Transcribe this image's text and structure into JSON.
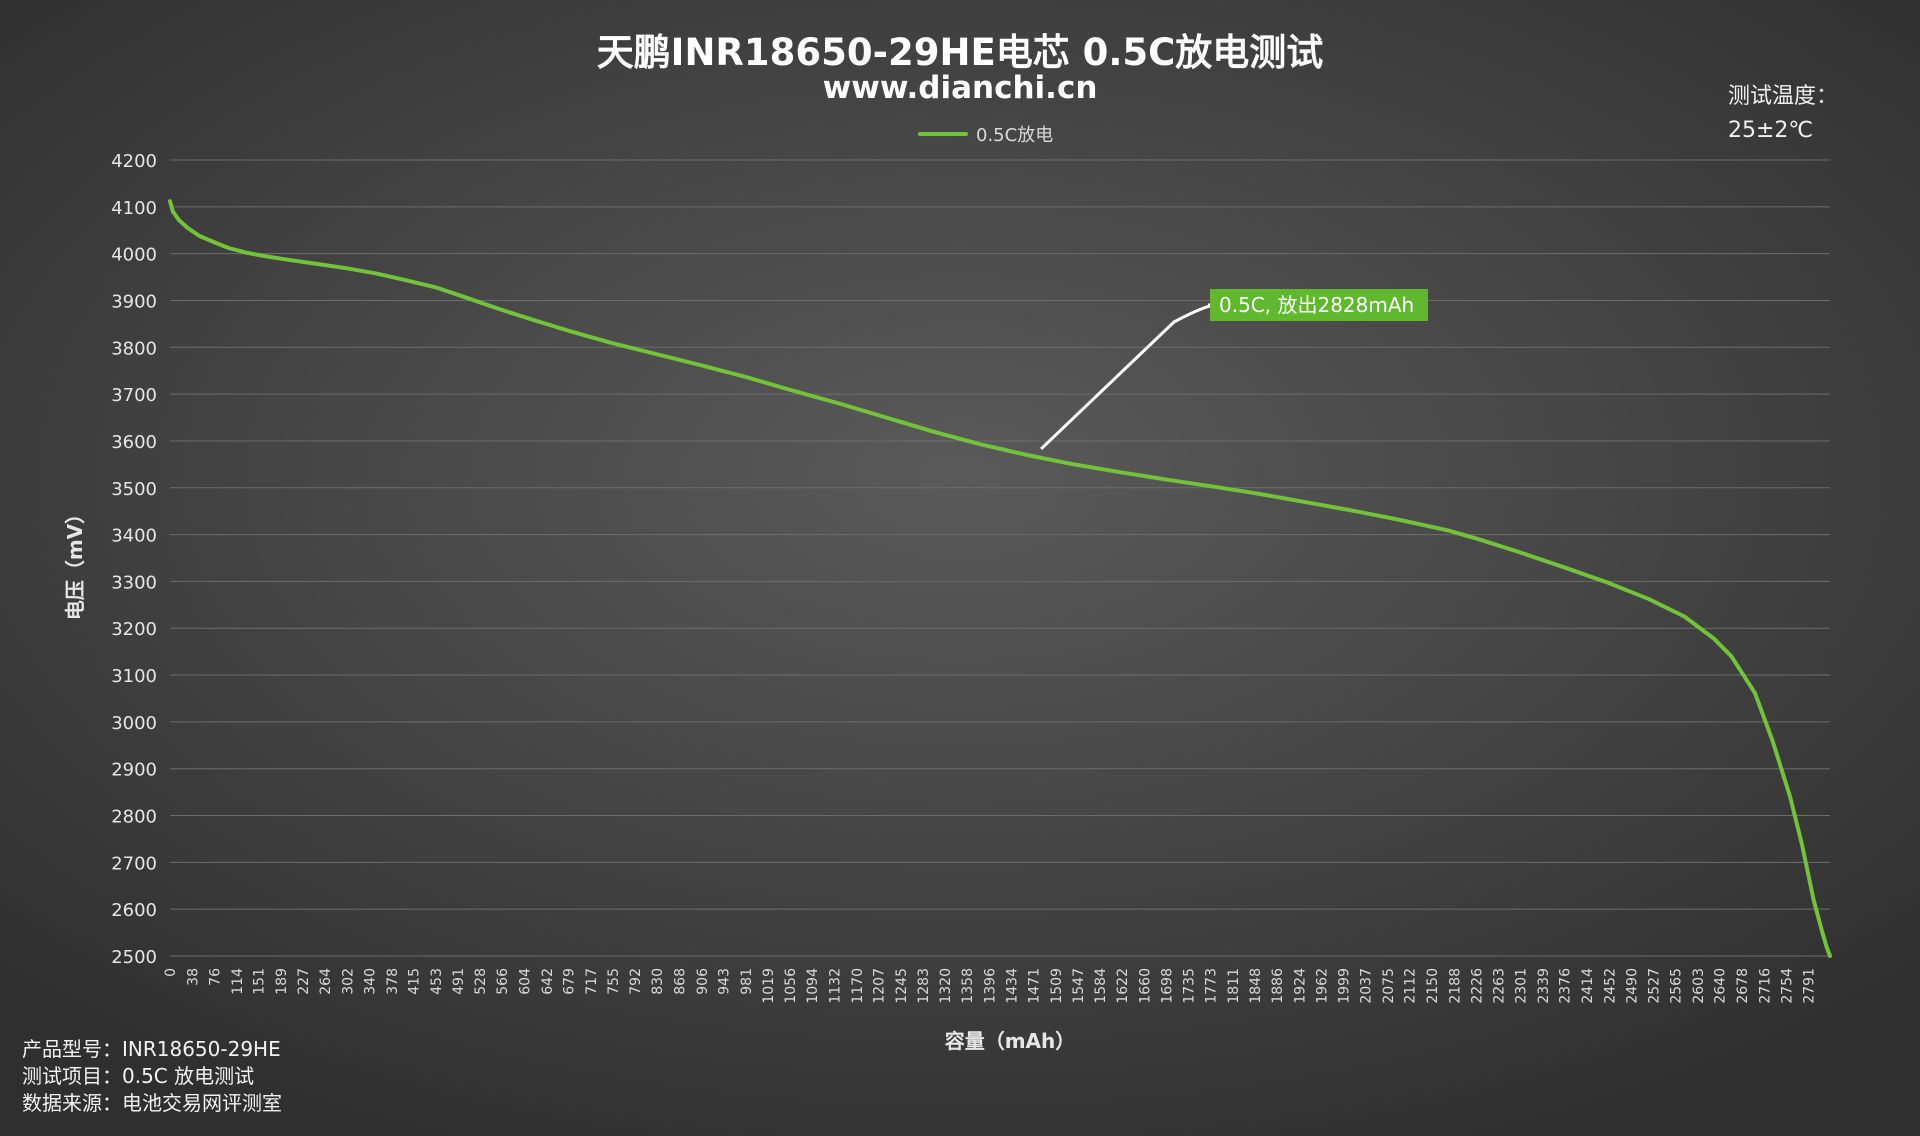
{
  "header": {
    "title": "天鹏INR18650-29HE电芯 0.5C放电测试",
    "subtitle": "www.dianchi.cn",
    "temp_label": "测试温度：",
    "temp_value": "25±2℃"
  },
  "legend": {
    "label": "0.5C放电"
  },
  "annotation": {
    "text": "0.5C, 放出2828mAh"
  },
  "info": {
    "model": "产品型号：INR18650-29HE",
    "item": "测试项目：0.5C 放电测试",
    "source": "数据来源：电池交易网评测室"
  },
  "colors": {
    "series": "#72c23a",
    "annotation_bg": "#5fb82e",
    "leader": "#ffffff",
    "grid": "#6c6c6c"
  },
  "chart_data": {
    "type": "line",
    "title": "天鹏INR18650-29HE电芯 0.5C放电测试",
    "xlabel": "容量（mAh）",
    "ylabel": "电压（mV）",
    "xlim": [
      0,
      2828
    ],
    "ylim": [
      2500,
      4200
    ],
    "yticks": [
      2500,
      2600,
      2700,
      2800,
      2900,
      3000,
      3100,
      3200,
      3300,
      3400,
      3500,
      3600,
      3700,
      3800,
      3900,
      4000,
      4100,
      4200
    ],
    "xticks": [
      0,
      38,
      76,
      114,
      151,
      189,
      227,
      264,
      302,
      340,
      378,
      415,
      453,
      491,
      528,
      566,
      604,
      642,
      679,
      717,
      755,
      792,
      830,
      868,
      906,
      943,
      981,
      1019,
      1056,
      1094,
      1132,
      1170,
      1207,
      1245,
      1283,
      1320,
      1358,
      1396,
      1434,
      1471,
      1509,
      1547,
      1584,
      1622,
      1660,
      1698,
      1735,
      1773,
      1811,
      1848,
      1886,
      1924,
      1962,
      1999,
      2037,
      2075,
      2112,
      2150,
      2188,
      2226,
      2263,
      2301,
      2339,
      2376,
      2414,
      2452,
      2490,
      2527,
      2565,
      2603,
      2640,
      2678,
      2716,
      2754,
      2791
    ],
    "grid": true,
    "legend_position": "top",
    "series": [
      {
        "name": "0.5C放电",
        "x": [
          0,
          5,
          15,
          30,
          50,
          76,
          100,
          130,
          160,
          200,
          250,
          300,
          350,
          400,
          453,
          500,
          560,
          620,
          680,
          750,
          830,
          900,
          980,
          1060,
          1140,
          1220,
          1300,
          1380,
          1460,
          1540,
          1620,
          1700,
          1780,
          1860,
          1940,
          2020,
          2100,
          2180,
          2230,
          2300,
          2380,
          2450,
          2520,
          2580,
          2630,
          2660,
          2700,
          2730,
          2760,
          2780,
          2800,
          2815,
          2822,
          2828
        ],
        "y": [
          4112,
          4090,
          4072,
          4055,
          4038,
          4024,
          4012,
          4002,
          3995,
          3987,
          3978,
          3969,
          3958,
          3944,
          3928,
          3908,
          3882,
          3858,
          3835,
          3810,
          3785,
          3763,
          3737,
          3708,
          3680,
          3650,
          3620,
          3593,
          3570,
          3550,
          3533,
          3517,
          3502,
          3486,
          3468,
          3450,
          3430,
          3408,
          3390,
          3362,
          3328,
          3297,
          3262,
          3225,
          3178,
          3140,
          3062,
          2960,
          2840,
          2740,
          2620,
          2550,
          2520,
          2500
        ]
      }
    ],
    "annotation": {
      "x": 1484,
      "y": 3583,
      "text": "0.5C, 放出2828mAh"
    }
  }
}
